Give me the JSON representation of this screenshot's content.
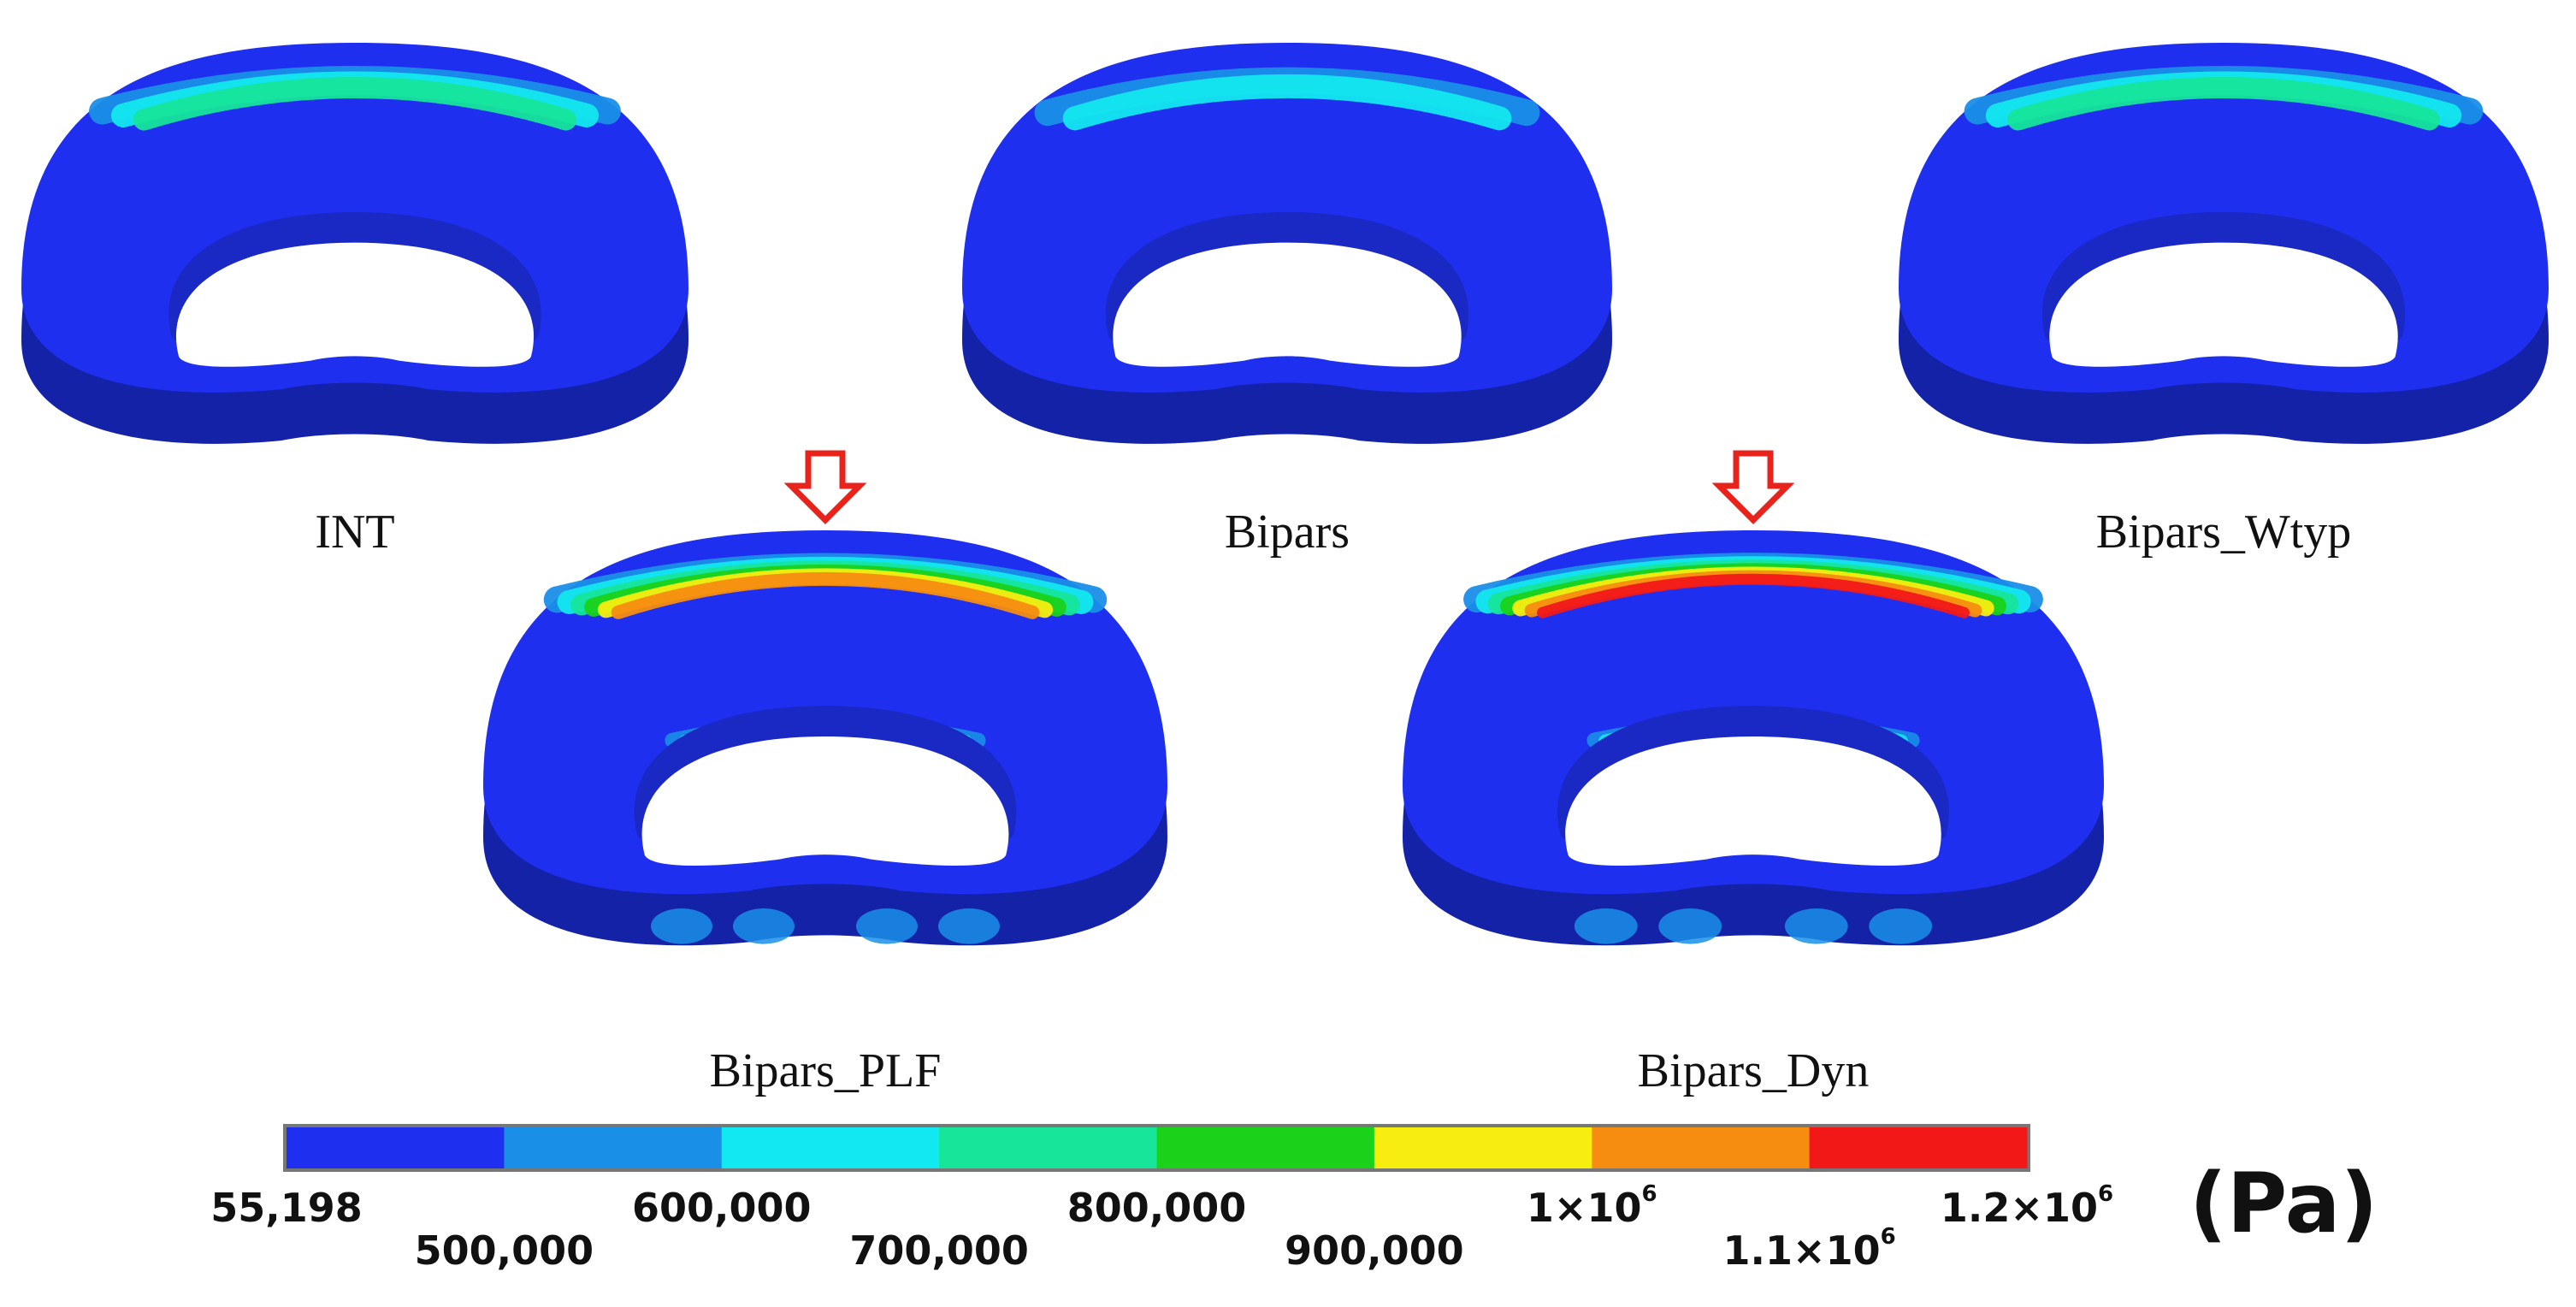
{
  "figure": {
    "models": [
      {
        "label": "INT",
        "peak_level": 3,
        "highlighted": false
      },
      {
        "label": "Bipars",
        "peak_level": 2,
        "highlighted": false
      },
      {
        "label": "Bipars_Wtyp",
        "peak_level": 3,
        "highlighted": false
      },
      {
        "label": "Bipars_PLF",
        "peak_level": 6,
        "highlighted": true
      },
      {
        "label": "Bipars_Dyn",
        "peak_level": 8,
        "highlighted": true
      }
    ],
    "colorbar": {
      "unit": "(Pa)",
      "colors": [
        "#1f2ff0",
        "#1a8fe8",
        "#12e8ef",
        "#16e59a",
        "#1ad21a",
        "#f7ee10",
        "#f78d10",
        "#f21818"
      ],
      "ticks": [
        {
          "base": "55,198",
          "exp": ""
        },
        {
          "base": "500,000",
          "exp": ""
        },
        {
          "base": "600,000",
          "exp": ""
        },
        {
          "base": "700,000",
          "exp": ""
        },
        {
          "base": "800,000",
          "exp": ""
        },
        {
          "base": "900,000",
          "exp": ""
        },
        {
          "base": "1×10",
          "exp": "6"
        },
        {
          "base": "1.1×10",
          "exp": "6"
        },
        {
          "base": "1.2×10",
          "exp": "6"
        }
      ]
    },
    "marker_icon": "down-arrow-icon",
    "marker_color": "#e8231c",
    "ring_base_color": "#1f2ff0",
    "ring_side_color": "#1422a8"
  }
}
